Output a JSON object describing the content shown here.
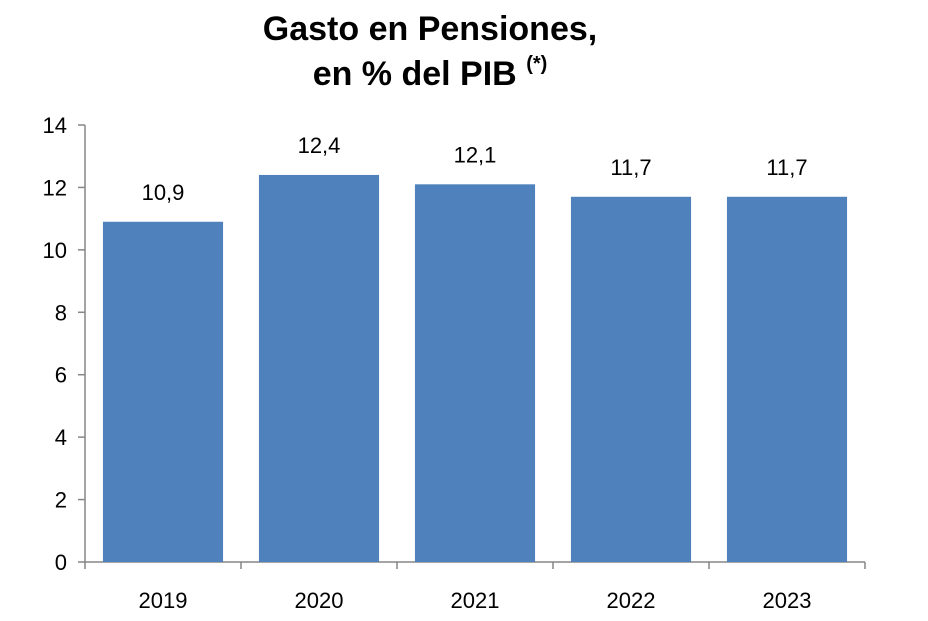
{
  "chart_data": {
    "type": "bar",
    "title_line1": "Gasto en Pensiones,",
    "title_line2": "en % del PIB",
    "title_note": "(*)",
    "categories": [
      "2019",
      "2020",
      "2021",
      "2022",
      "2023"
    ],
    "values": [
      10.9,
      12.4,
      12.1,
      11.7,
      11.7
    ],
    "data_labels": [
      "10,9",
      "12,4",
      "12,1",
      "11,7",
      "11,7"
    ],
    "yticks": [
      "0",
      "2",
      "4",
      "6",
      "8",
      "10",
      "12",
      "14"
    ],
    "ylim": [
      0,
      14
    ],
    "xlabel": "",
    "ylabel": "",
    "grid": false,
    "bar_color": "#4F81BD"
  }
}
